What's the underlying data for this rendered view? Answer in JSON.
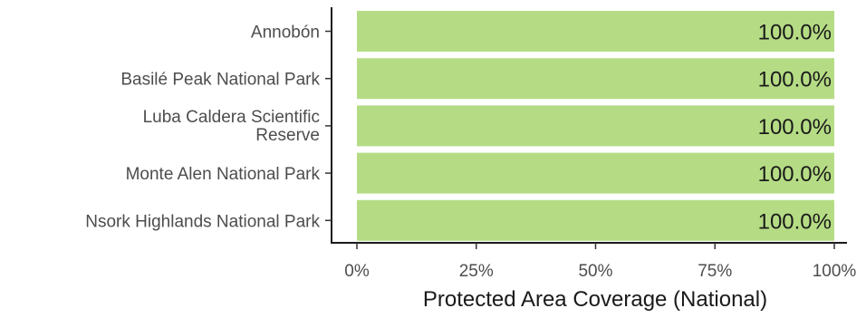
{
  "chart_data": {
    "type": "bar",
    "orientation": "horizontal",
    "categories": [
      "Annobón",
      "Basilé Peak National Park",
      "Luba Caldera Scientific Reserve",
      "Monte Alen National Park",
      "Nsork Highlands National Park"
    ],
    "values": [
      100.0,
      100.0,
      100.0,
      100.0,
      100.0
    ],
    "data_labels": [
      "100.0%",
      "100.0%",
      "100.0%",
      "100.0%",
      "100.0%"
    ],
    "xlabel": "Protected Area Coverage (National)",
    "ylabel": "",
    "xlim": [
      0,
      100
    ],
    "x_ticks": [
      0,
      25,
      50,
      75,
      100
    ],
    "x_tick_labels": [
      "0%",
      "25%",
      "50%",
      "75%",
      "100%"
    ],
    "bar_color": "#b5dc84",
    "grid": false
  }
}
